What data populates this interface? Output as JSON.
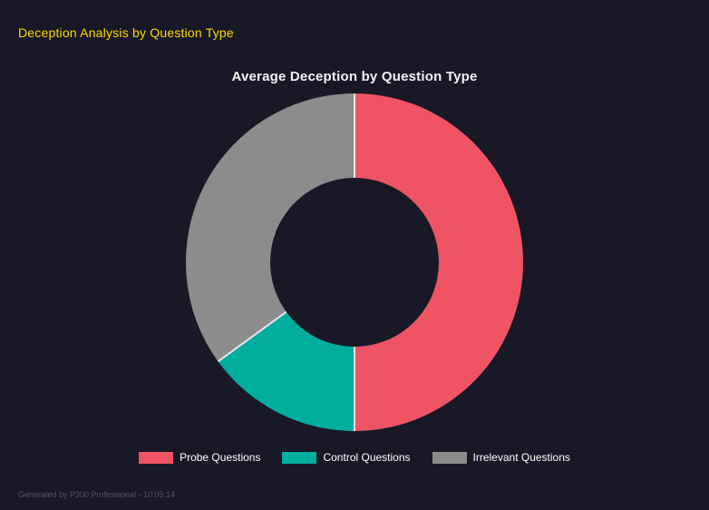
{
  "page": {
    "background": "#181827",
    "header_title": "Deception Analysis by Question Type",
    "header_color": "#ffd900",
    "footer": "Generated by P300 Professional - 10:05:14"
  },
  "chart_data": {
    "type": "pie",
    "donut": true,
    "hole_ratio": 0.5,
    "title": "Average Deception by Question Type",
    "categories": [
      "Probe Questions",
      "Control Questions",
      "Irrelevant Questions"
    ],
    "values": [
      50,
      15,
      35
    ],
    "colors": [
      "#ef5464",
      "#00ad9f",
      "#8c8c8c"
    ],
    "start_angle_deg": 0,
    "direction": "clockwise",
    "segment_border_color": "#e8e8e8",
    "legend_position": "bottom"
  }
}
